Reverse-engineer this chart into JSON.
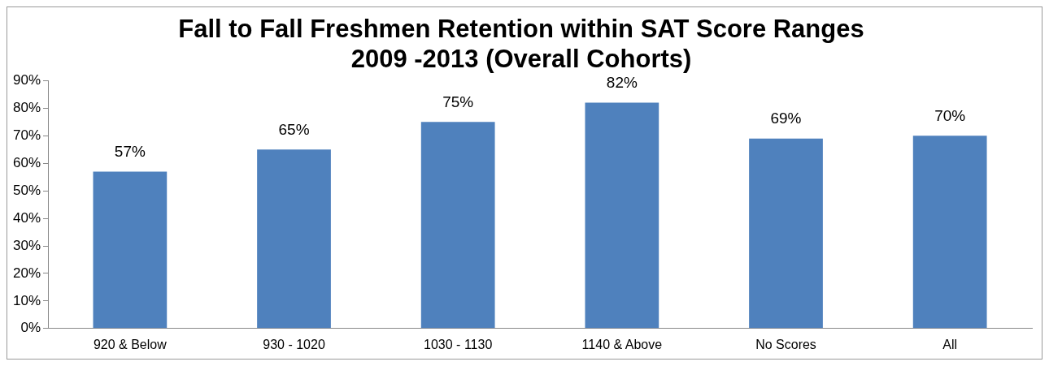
{
  "chart_data": {
    "type": "bar",
    "title": [
      "Fall to Fall Freshmen Retention within SAT Score Ranges",
      "2009 -2013 (Overall Cohorts)"
    ],
    "categories": [
      "920 & Below",
      "930 - 1020",
      "1030 - 1130",
      "1140 & Above",
      "No Scores",
      "All"
    ],
    "values": [
      57,
      65,
      75,
      82,
      69,
      70
    ],
    "color": "#4f81bd",
    "value_labels": [
      "57%",
      "65%",
      "75%",
      "82%",
      "69%",
      "70%"
    ],
    "ylim": [
      0,
      90
    ],
    "yticks": [
      {
        "value": 0,
        "label": "0%"
      },
      {
        "value": 10,
        "label": "10%"
      },
      {
        "value": 20,
        "label": "20%"
      },
      {
        "value": 30,
        "label": "30%"
      },
      {
        "value": 40,
        "label": "40%"
      },
      {
        "value": 50,
        "label": "50%"
      },
      {
        "value": 60,
        "label": "60%"
      },
      {
        "value": 70,
        "label": "70%"
      },
      {
        "value": 80,
        "label": "80%"
      },
      {
        "value": 90,
        "label": "90%"
      }
    ],
    "grid": false,
    "legend": false
  }
}
